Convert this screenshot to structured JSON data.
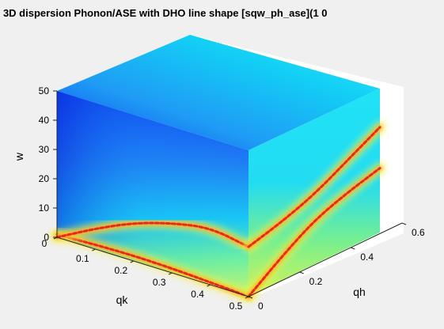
{
  "chart_data": {
    "type": "surface3d",
    "title": ") 3D dispersion Phonon/ASE with DHO line shape [sqw_ph_ase](1 0",
    "xlabel": "qk",
    "ylabel": "qh",
    "zlabel": "w",
    "xlim": [
      0,
      0.5
    ],
    "ylim": [
      0,
      0.6
    ],
    "zlim": [
      0,
      50
    ],
    "x_ticks": [
      "0",
      "0.1",
      "0.2",
      "0.3",
      "0.4",
      "0.5"
    ],
    "y_ticks": [
      "0",
      "0.2",
      "0.4",
      "0.6"
    ],
    "z_ticks": [
      "0",
      "10",
      "20",
      "30",
      "40",
      "50"
    ],
    "colormap": "jet",
    "background": "#f0f0f0",
    "dispersion_branches": [
      {
        "face": "qh=0",
        "qk": [
          0,
          0.1,
          0.2,
          0.3,
          0.4,
          0.5
        ],
        "w": [
          1,
          1.5,
          1.8,
          1.5,
          0.8,
          0
        ]
      },
      {
        "face": "qh=0",
        "qk": [
          0,
          0.1,
          0.2,
          0.3,
          0.4,
          0.5
        ],
        "w": [
          0,
          7,
          13,
          17,
          19.5,
          17
        ]
      },
      {
        "face": "qk=0.5",
        "qh": [
          0,
          0.15,
          0.3,
          0.45,
          0.6
        ],
        "w": [
          0,
          8,
          15,
          19,
          22
        ]
      },
      {
        "face": "qk=0.5",
        "qh": [
          0,
          0.15,
          0.3,
          0.45,
          0.6
        ],
        "w": [
          17,
          20,
          24,
          30,
          36
        ]
      }
    ]
  }
}
